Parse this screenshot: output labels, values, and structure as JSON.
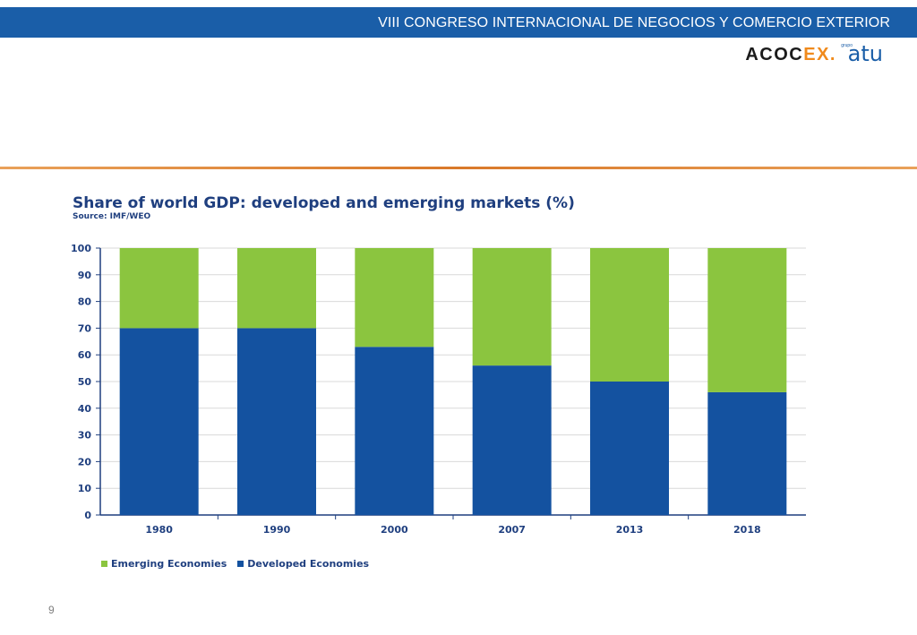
{
  "header": {
    "title": "VIII CONGRESO INTERNACIONAL DE NEGOCIOS Y COMERCIO EXTERIOR",
    "bar_color": "#1a5ea8"
  },
  "logo": {
    "acoc": "ACOC",
    "ex": "EX.",
    "grupo": "grupo",
    "atu": "atu"
  },
  "slide": {
    "page_number": "9"
  },
  "chart_data": {
    "type": "bar",
    "stacked": true,
    "title": "Share of world GDP: developed and emerging markets (%)",
    "subtitle": "Source: IMF/WEO",
    "xlabel": "",
    "ylabel": "",
    "categories": [
      "1980",
      "1990",
      "2000",
      "2007",
      "2013",
      "2018"
    ],
    "ylim": [
      0,
      100
    ],
    "yticks": [
      0,
      10,
      20,
      30,
      40,
      50,
      60,
      70,
      80,
      90,
      100
    ],
    "grid": true,
    "legend_position": "bottom-left",
    "series": [
      {
        "name": "Developed Economies",
        "color": "#1452a0",
        "values": [
          70,
          70,
          63,
          56,
          50,
          46
        ]
      },
      {
        "name": "Emerging Economies",
        "color": "#8bc53f",
        "values": [
          30,
          30,
          37,
          44,
          50,
          54
        ]
      }
    ],
    "legend_order": [
      "Emerging Economies",
      "Developed Economies"
    ]
  }
}
